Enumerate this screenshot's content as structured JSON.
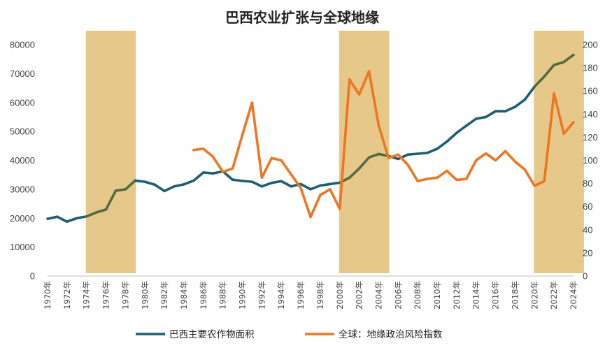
{
  "chart_data": {
    "type": "line",
    "title": "巴西农业扩张与全球地缘",
    "x_labels": [
      "1970年",
      "1972年",
      "1974年",
      "1976年",
      "1978年",
      "1980年",
      "1982年",
      "1984年",
      "1986年",
      "1988年",
      "1990年",
      "1992年",
      "1994年",
      "1996年",
      "1998年",
      "2000年",
      "2002年",
      "2004年",
      "2006年",
      "2008年",
      "2010年",
      "2012年",
      "2014年",
      "2016年",
      "2018年",
      "2020年",
      "2022年",
      "2024年"
    ],
    "xlim": [
      1970,
      2024
    ],
    "y_left": {
      "lim": [
        0,
        80000
      ],
      "ticks": [
        "0",
        "10000",
        "20000",
        "30000",
        "40000",
        "50000",
        "60000",
        "70000",
        "80000"
      ]
    },
    "y_right": {
      "lim": [
        0,
        200
      ],
      "ticks": [
        "0",
        "20",
        "40",
        "60",
        "80",
        "100",
        "120",
        "140",
        "160",
        "180",
        "200"
      ]
    },
    "shaded_periods": [
      [
        1974,
        1979
      ],
      [
        2000,
        2005
      ],
      [
        2020,
        2025
      ]
    ],
    "shade_color": "#e6c98a",
    "series": [
      {
        "name": "巴西主要农作物面积",
        "axis": "left",
        "color": "#1c5e74",
        "shaded_color": "#556b3e",
        "x": [
          1970,
          1971,
          1972,
          1973,
          1974,
          1975,
          1976,
          1977,
          1978,
          1979,
          1980,
          1981,
          1982,
          1983,
          1984,
          1985,
          1986,
          1987,
          1988,
          1989,
          1990,
          1991,
          1992,
          1993,
          1994,
          1995,
          1996,
          1997,
          1998,
          1999,
          2000,
          2001,
          2002,
          2003,
          2004,
          2005,
          2006,
          2007,
          2008,
          2009,
          2010,
          2011,
          2012,
          2013,
          2014,
          2015,
          2016,
          2017,
          2018,
          2019,
          2020,
          2021,
          2022,
          2023,
          2024
        ],
        "values": [
          19800,
          20500,
          18800,
          20000,
          20600,
          22000,
          23000,
          29500,
          30000,
          33000,
          32600,
          31600,
          29400,
          31000,
          31700,
          33000,
          35800,
          35500,
          36200,
          33300,
          32900,
          32600,
          31000,
          32200,
          32800,
          31000,
          31800,
          30000,
          31300,
          31800,
          32300,
          34000,
          37200,
          41000,
          42200,
          41500,
          40500,
          42000,
          42300,
          42600,
          44000,
          46500,
          49500,
          52000,
          54400,
          55000,
          57000,
          57000,
          58500,
          61000,
          65500,
          69000,
          73000,
          74000,
          76500
        ]
      },
      {
        "name": "全球：地缘政治风险指数",
        "axis": "right",
        "color": "#ee7623",
        "x": [
          1985,
          1986,
          1987,
          1988,
          1989,
          1990,
          1991,
          1992,
          1993,
          1994,
          1995,
          1996,
          1997,
          1998,
          1999,
          2000,
          2001,
          2002,
          2003,
          2004,
          2005,
          2006,
          2007,
          2008,
          2009,
          2010,
          2011,
          2012,
          2013,
          2014,
          2015,
          2016,
          2017,
          2018,
          2019,
          2020,
          2021,
          2022,
          2023,
          2024
        ],
        "values": [
          109,
          110,
          103,
          90,
          93,
          122,
          150,
          85,
          102,
          100,
          88,
          76,
          51,
          70,
          75,
          58,
          170,
          157,
          177,
          130,
          102,
          105,
          96,
          82,
          84,
          85,
          91,
          83,
          84,
          100,
          106,
          100,
          108,
          99,
          92,
          78,
          82,
          158,
          123,
          133
        ]
      }
    ]
  }
}
